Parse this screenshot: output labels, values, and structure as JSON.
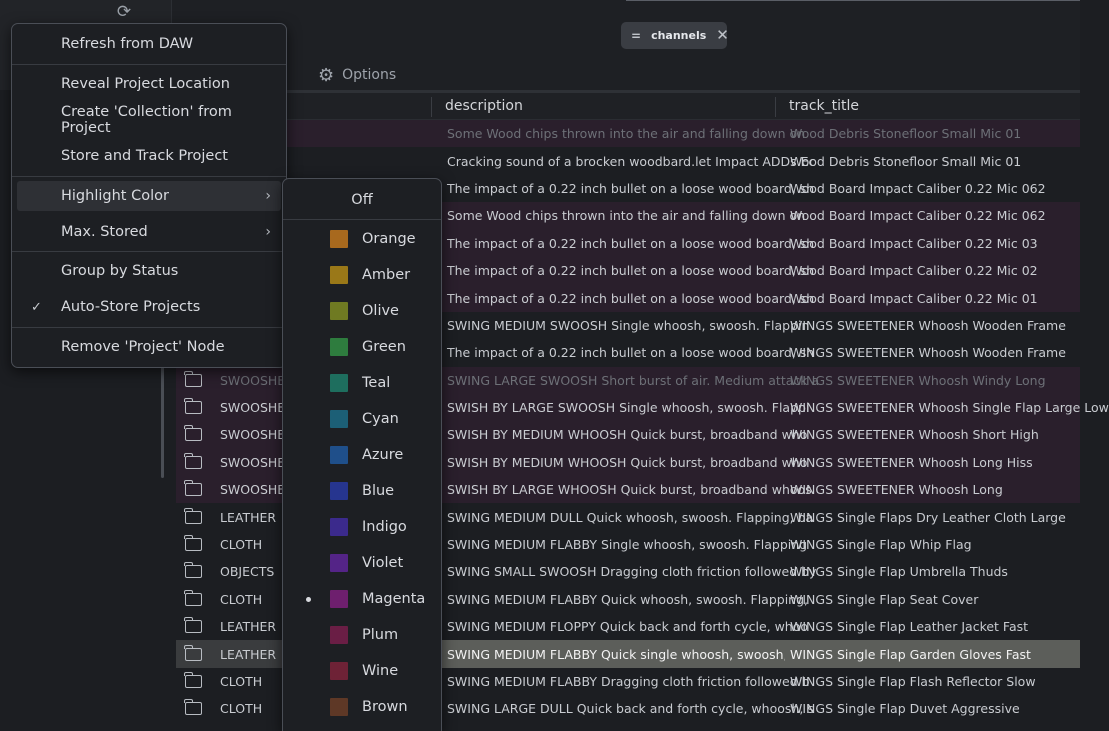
{
  "toolbar": {
    "refresh_icon": "refresh-icon"
  },
  "filter_chip": {
    "prefix": "=",
    "label": "channels",
    "close": "✕"
  },
  "tabs": {
    "options_label": "Options"
  },
  "table": {
    "headers": {
      "description": "description",
      "track_title": "track_title"
    },
    "rows": [
      {
        "cat": "",
        "desc": "Some Wood chips thrown into the air and falling down on",
        "track": "Wood Debris Stonefloor Small Mic 01",
        "state": "magenta dim",
        "folder": false
      },
      {
        "cat": "",
        "desc": "Cracking sound of a brocken woodbard.let Impact ADDs Ec",
        "track": "Wood Debris Stonefloor Small Mic 01",
        "state": "",
        "folder": false
      },
      {
        "cat": "",
        "desc": "The impact of a 0.22 inch bullet on a loose wood board, sh",
        "track": "Wood Board Impact Caliber 0.22 Mic 062",
        "state": "",
        "folder": false
      },
      {
        "cat": "",
        "desc": "Some Wood chips thrown into the air and falling down on",
        "track": "Wood Board Impact Caliber 0.22 Mic 062",
        "state": "magenta",
        "folder": false
      },
      {
        "cat": "",
        "desc": "The impact of a 0.22 inch bullet on a loose wood board, sh",
        "track": "Wood Board Impact Caliber 0.22 Mic 03",
        "state": "magenta",
        "folder": false
      },
      {
        "cat": "",
        "desc": "The impact of a 0.22 inch bullet on a loose wood board, sh",
        "track": "Wood Board Impact Caliber 0.22 Mic 02",
        "state": "magenta",
        "folder": false
      },
      {
        "cat": "",
        "desc": "The impact of a 0.22 inch bullet on a loose wood board, sh",
        "track": "Wood Board Impact Caliber 0.22 Mic 01",
        "state": "magenta",
        "folder": false
      },
      {
        "cat": "",
        "desc": "SWING MEDIUM SWOOSH Single whoosh, swoosh. Flappin",
        "track": "WINGS SWEETENER Whoosh Wooden Frame",
        "state": "",
        "folder": false
      },
      {
        "cat": "",
        "desc": "The impact of a 0.22 inch bullet on a loose wood board, sh",
        "track": "WINGS SWEETENER Whoosh Wooden Frame",
        "state": "",
        "folder": false
      },
      {
        "cat": "SWOOSHES",
        "desc": "SWING LARGE SWOOSH Short burst of air. Medium attack a",
        "track": "WINGS SWEETENER Whoosh Windy Long",
        "state": "magenta dim",
        "folder": true
      },
      {
        "cat": "SWOOSHES",
        "desc": "SWISH BY LARGE SWOOSH Single whoosh, swoosh. Flappi",
        "track": "WINGS SWEETENER Whoosh Single Flap Large Low",
        "state": "magenta",
        "folder": true
      },
      {
        "cat": "SWOOSHES",
        "desc": "SWISH BY MEDIUM WHOOSH Quick burst, broadband who",
        "track": "WINGS SWEETENER Whoosh Short High",
        "state": "magenta",
        "folder": true
      },
      {
        "cat": "SWOOSHES",
        "desc": "SWISH BY MEDIUM WHOOSH Quick burst, broadband who",
        "track": "WINGS SWEETENER Whoosh Long Hiss",
        "state": "magenta",
        "folder": true
      },
      {
        "cat": "SWOOSHES",
        "desc": "SWISH BY LARGE WHOOSH Quick burst, broadband whoos",
        "track": "WINGS SWEETENER Whoosh Long",
        "state": "magenta",
        "folder": true
      },
      {
        "cat": "LEATHER",
        "desc": "SWING MEDIUM DULL Quick whoosh, swoosh. Flapping, ba",
        "track": "WINGS Single Flaps Dry Leather Cloth Large",
        "state": "",
        "folder": true
      },
      {
        "cat": "CLOTH",
        "desc": "SWING MEDIUM FLABBY Single whoosh, swoosh. Flapping",
        "track": "WINGS Single Flap Whip Flag",
        "state": "",
        "folder": true
      },
      {
        "cat": "OBJECTS",
        "desc": "SWING SMALL SWOOSH Dragging cloth friction followed by",
        "track": "WINGS Single Flap Umbrella Thuds",
        "state": "",
        "folder": true
      },
      {
        "cat": "CLOTH",
        "desc": "SWING MEDIUM FLABBY Quick whoosh, swoosh. Flapping,",
        "track": "WINGS Single Flap Seat Cover",
        "state": "",
        "folder": true
      },
      {
        "cat": "LEATHER",
        "desc": "SWING MEDIUM FLOPPY Quick back and forth cycle, whoo",
        "track": "WINGS Single Flap Leather Jacket Fast",
        "state": "",
        "folder": true
      },
      {
        "cat": "LEATHER",
        "desc": "SWING MEDIUM FLABBY Quick single whoosh, swoosh, cru",
        "track": "WINGS Single Flap Garden Gloves Fast",
        "state": "selected",
        "folder": true
      },
      {
        "cat": "CLOTH",
        "desc": "SWING MEDIUM FLABBY Dragging cloth friction followed b",
        "track": "WINGS Single Flap Flash Reflector Slow",
        "state": "",
        "folder": true
      },
      {
        "cat": "CLOTH",
        "desc": "SWING LARGE DULL Quick back and forth cycle, whoosh, s",
        "track": "WINGS Single Flap Duvet Aggressive",
        "state": "",
        "folder": true
      }
    ]
  },
  "menu": {
    "refresh": "Refresh from DAW",
    "reveal": "Reveal Project Location",
    "create_collection": "Create 'Collection' from Project",
    "store_track": "Store and Track Project",
    "highlight_color": "Highlight Color",
    "max_stored": "Max. Stored",
    "group_by_status": "Group by Status",
    "auto_store": "Auto-Store Projects",
    "remove_node": "Remove 'Project' Node",
    "arrow": "›",
    "check": "✓"
  },
  "submenu": {
    "off": "Off",
    "colors": [
      {
        "name": "Orange",
        "hex": "#a8691e"
      },
      {
        "name": "Amber",
        "hex": "#9a7818"
      },
      {
        "name": "Olive",
        "hex": "#6f7a22"
      },
      {
        "name": "Green",
        "hex": "#2e7c3e"
      },
      {
        "name": "Teal",
        "hex": "#1e6e5e"
      },
      {
        "name": "Cyan",
        "hex": "#1c5f76"
      },
      {
        "name": "Azure",
        "hex": "#1f4f8a"
      },
      {
        "name": "Blue",
        "hex": "#26358f"
      },
      {
        "name": "Indigo",
        "hex": "#3b2a8c"
      },
      {
        "name": "Violet",
        "hex": "#542487"
      },
      {
        "name": "Magenta",
        "hex": "#6e1f6e",
        "selected": true
      },
      {
        "name": "Plum",
        "hex": "#6a1e45"
      },
      {
        "name": "Wine",
        "hex": "#6e2236"
      },
      {
        "name": "Brown",
        "hex": "#5e3826"
      }
    ]
  }
}
